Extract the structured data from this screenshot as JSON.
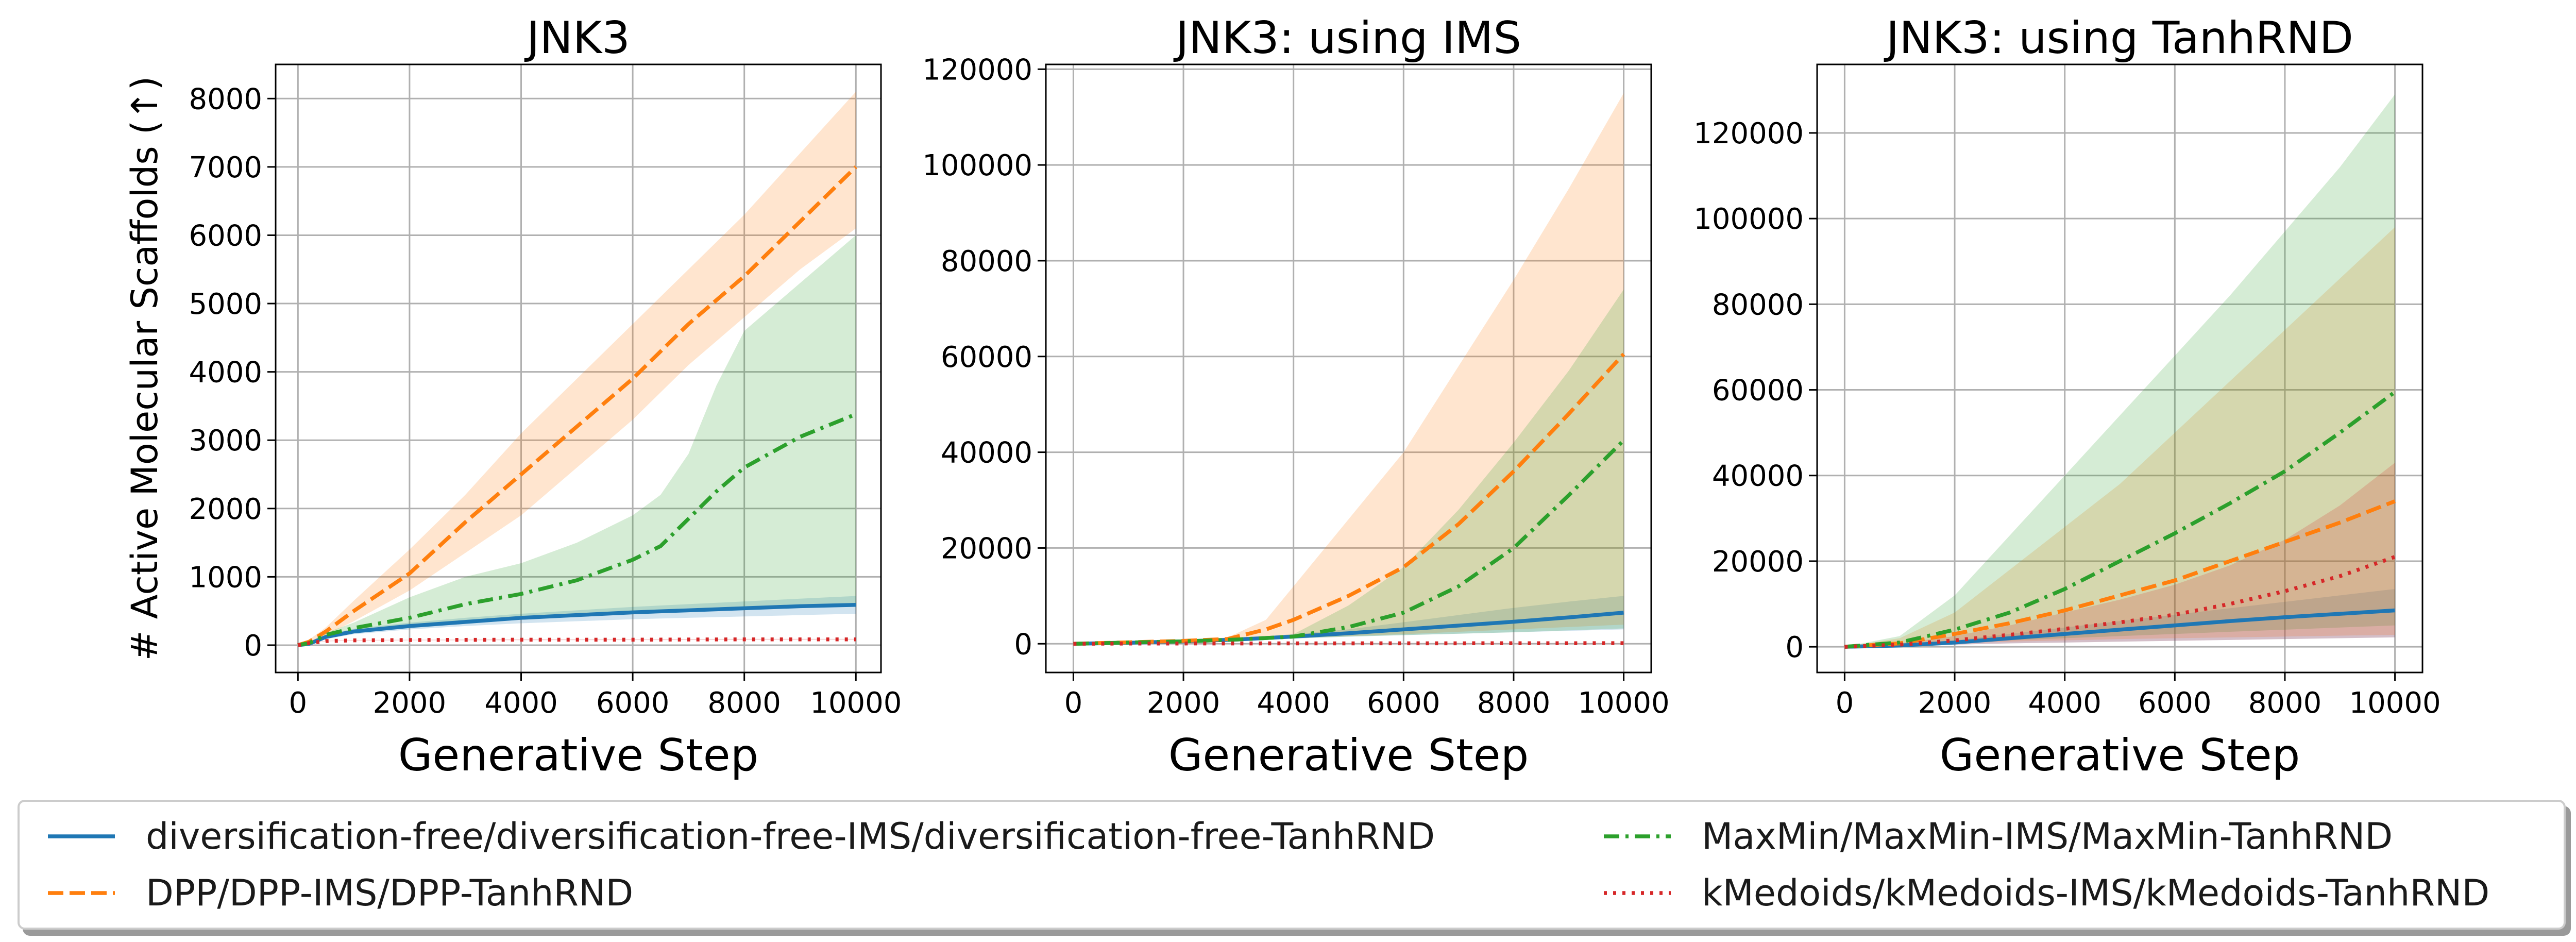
{
  "colors": {
    "diversification_free": "#1f77b4",
    "dpp": "#ff7f0e",
    "maxmin": "#2ca02c",
    "kmedoids": "#d62728",
    "grid": "#b0b0b0",
    "axes": "#000000"
  },
  "chart_data": [
    {
      "type": "line",
      "title": "JNK3",
      "xlabel": "Generative Step",
      "ylabel": "# Active Molecular Scaffolds (↑)",
      "xlim": [
        -400,
        10450
      ],
      "ylim": [
        -400,
        8500
      ],
      "xticks": [
        0,
        2000,
        4000,
        6000,
        8000,
        10000
      ],
      "yticks": [
        0,
        1000,
        2000,
        3000,
        4000,
        5000,
        6000,
        7000,
        8000
      ],
      "xtick_labels": [
        "0",
        "2000",
        "4000",
        "6000",
        "8000",
        "10000"
      ],
      "ytick_labels": [
        "0",
        "1000",
        "2000",
        "3000",
        "4000",
        "5000",
        "6000",
        "7000",
        "8000"
      ],
      "grid": true,
      "series": [
        {
          "key": "diversification_free",
          "style": "solid",
          "x": [
            0,
            200,
            500,
            1000,
            2000,
            3000,
            4000,
            5000,
            6000,
            7000,
            8000,
            9000,
            10000
          ],
          "y": [
            0,
            20,
            120,
            200,
            280,
            340,
            400,
            440,
            480,
            510,
            540,
            570,
            590
          ],
          "lo": [
            0,
            10,
            90,
            160,
            230,
            280,
            320,
            350,
            380,
            400,
            420,
            440,
            460
          ],
          "hi": [
            0,
            30,
            150,
            240,
            330,
            400,
            460,
            510,
            560,
            600,
            640,
            680,
            720
          ]
        },
        {
          "key": "dpp",
          "style": "dashed",
          "x": [
            0,
            200,
            500,
            1000,
            2000,
            3000,
            4000,
            5000,
            6000,
            7000,
            8000,
            9000,
            10000
          ],
          "y": [
            0,
            50,
            200,
            500,
            1050,
            1800,
            2500,
            3200,
            3900,
            4700,
            5400,
            6200,
            7000
          ],
          "lo": [
            0,
            30,
            150,
            350,
            800,
            1350,
            1900,
            2600,
            3300,
            4100,
            4800,
            5500,
            6100
          ],
          "hi": [
            0,
            80,
            260,
            650,
            1400,
            2200,
            3100,
            3900,
            4700,
            5500,
            6300,
            7200,
            8100
          ]
        },
        {
          "key": "maxmin",
          "style": "dashdot",
          "x": [
            0,
            200,
            500,
            1000,
            2000,
            3000,
            4000,
            5000,
            6000,
            6500,
            7000,
            7500,
            8000,
            9000,
            10000
          ],
          "y": [
            0,
            30,
            150,
            250,
            400,
            600,
            750,
            950,
            1250,
            1450,
            1850,
            2250,
            2600,
            3050,
            3380
          ],
          "lo": [
            0,
            20,
            120,
            200,
            280,
            350,
            400,
            450,
            500,
            520,
            540,
            550,
            560,
            580,
            600
          ],
          "hi": [
            0,
            40,
            180,
            330,
            700,
            1000,
            1200,
            1500,
            1900,
            2200,
            2800,
            3800,
            4600,
            5300,
            6000
          ]
        },
        {
          "key": "kmedoids",
          "style": "dotted",
          "x": [
            0,
            200,
            500,
            1000,
            2000,
            4000,
            6000,
            8000,
            10000
          ],
          "y": [
            0,
            30,
            60,
            70,
            75,
            80,
            80,
            85,
            85
          ],
          "lo": [
            0,
            25,
            55,
            65,
            70,
            72,
            74,
            76,
            78
          ],
          "hi": [
            0,
            35,
            65,
            75,
            80,
            88,
            88,
            92,
            92
          ]
        }
      ]
    },
    {
      "type": "line",
      "title": "JNK3: using IMS",
      "xlabel": "Generative Step",
      "ylabel": "",
      "xlim": [
        -500,
        10500
      ],
      "ylim": [
        -6000,
        121000
      ],
      "xticks": [
        0,
        2000,
        4000,
        6000,
        8000,
        10000
      ],
      "yticks": [
        0,
        20000,
        40000,
        60000,
        80000,
        100000,
        120000
      ],
      "xtick_labels": [
        "0",
        "2000",
        "4000",
        "6000",
        "8000",
        "10000"
      ],
      "ytick_labels": [
        "0",
        "20000",
        "40000",
        "60000",
        "80000",
        "100000",
        "120000"
      ],
      "grid": true,
      "series": [
        {
          "key": "diversification_free",
          "style": "solid",
          "x": [
            0,
            1000,
            2000,
            3000,
            4000,
            5000,
            6000,
            7000,
            8000,
            9000,
            10000
          ],
          "y": [
            0,
            200,
            500,
            900,
            1500,
            2200,
            3000,
            3800,
            4600,
            5500,
            6500
          ],
          "lo": [
            0,
            150,
            400,
            700,
            1100,
            1500,
            1800,
            2100,
            2400,
            2700,
            3000
          ],
          "hi": [
            0,
            250,
            600,
            1100,
            2000,
            3000,
            4500,
            6000,
            7500,
            8800,
            10000
          ]
        },
        {
          "key": "dpp",
          "style": "dashed",
          "x": [
            0,
            1000,
            2000,
            2800,
            3500,
            4000,
            5000,
            6000,
            7000,
            8000,
            9000,
            10000
          ],
          "y": [
            0,
            300,
            600,
            1000,
            3000,
            5000,
            10000,
            16000,
            25000,
            36000,
            48000,
            60500
          ],
          "lo": [
            0,
            200,
            400,
            700,
            1000,
            1200,
            1600,
            2000,
            2500,
            3000,
            3500,
            4000
          ],
          "hi": [
            0,
            400,
            800,
            1300,
            5000,
            12000,
            26000,
            40000,
            58000,
            76000,
            95000,
            115000
          ]
        },
        {
          "key": "maxmin",
          "style": "dashdot",
          "x": [
            0,
            1000,
            2000,
            3000,
            4000,
            5000,
            6000,
            7000,
            8000,
            9000,
            10000
          ],
          "y": [
            0,
            250,
            500,
            900,
            1500,
            3500,
            6500,
            12000,
            20000,
            31000,
            42500
          ],
          "lo": [
            0,
            200,
            400,
            700,
            1100,
            1500,
            1800,
            2100,
            2400,
            2800,
            3200
          ],
          "hi": [
            0,
            300,
            600,
            1100,
            2000,
            8000,
            16000,
            28000,
            42000,
            57000,
            74000
          ]
        },
        {
          "key": "kmedoids",
          "style": "dotted",
          "x": [
            0,
            1000,
            4000,
            7000,
            10000
          ],
          "y": [
            0,
            50,
            80,
            100,
            120
          ],
          "lo": [
            0,
            40,
            60,
            80,
            100
          ],
          "hi": [
            0,
            60,
            100,
            120,
            140
          ]
        }
      ]
    },
    {
      "type": "line",
      "title": "JNK3: using TanhRND",
      "xlabel": "Generative Step",
      "ylabel": "",
      "xlim": [
        -500,
        10500
      ],
      "ylim": [
        -6000,
        136000
      ],
      "xticks": [
        0,
        2000,
        4000,
        6000,
        8000,
        10000
      ],
      "yticks": [
        0,
        20000,
        40000,
        60000,
        80000,
        100000,
        120000
      ],
      "xtick_labels": [
        "0",
        "2000",
        "4000",
        "6000",
        "8000",
        "10000"
      ],
      "ytick_labels": [
        "0",
        "20000",
        "40000",
        "60000",
        "80000",
        "100000",
        "120000"
      ],
      "grid": true,
      "series": [
        {
          "key": "diversification_free",
          "style": "solid",
          "x": [
            0,
            1000,
            2000,
            3000,
            4000,
            5000,
            6000,
            7000,
            8000,
            9000,
            10000
          ],
          "y": [
            0,
            300,
            1000,
            2000,
            3000,
            4000,
            5000,
            6000,
            6900,
            7700,
            8500
          ],
          "lo": [
            0,
            200,
            500,
            800,
            1000,
            1200,
            1400,
            1600,
            1800,
            2000,
            2200
          ],
          "hi": [
            0,
            400,
            1500,
            3000,
            4500,
            6000,
            7500,
            9000,
            10500,
            12000,
            13500
          ]
        },
        {
          "key": "dpp",
          "style": "dashed",
          "x": [
            0,
            1000,
            2000,
            3000,
            4000,
            5000,
            6000,
            7000,
            8000,
            9000,
            10000
          ],
          "y": [
            0,
            800,
            3000,
            5500,
            8500,
            12000,
            15500,
            20000,
            24500,
            29000,
            34000
          ],
          "lo": [
            0,
            300,
            800,
            1200,
            1500,
            1800,
            2000,
            2200,
            2400,
            2600,
            2800
          ],
          "hi": [
            0,
            2000,
            8000,
            18000,
            28000,
            38000,
            50000,
            62000,
            74000,
            86000,
            98000
          ]
        },
        {
          "key": "maxmin",
          "style": "dashdot",
          "x": [
            0,
            1000,
            2000,
            3000,
            4000,
            5000,
            6000,
            7000,
            8000,
            9000,
            10000
          ],
          "y": [
            0,
            1000,
            4000,
            8000,
            13500,
            20000,
            26500,
            33500,
            41000,
            50000,
            59500
          ],
          "lo": [
            0,
            400,
            1000,
            1500,
            2000,
            2500,
            3000,
            3500,
            4000,
            4500,
            5000
          ],
          "hi": [
            0,
            2500,
            12000,
            26000,
            40000,
            54000,
            68000,
            82000,
            97000,
            112000,
            129000
          ]
        },
        {
          "key": "kmedoids",
          "style": "dotted",
          "x": [
            0,
            1000,
            2000,
            3000,
            4000,
            5000,
            6000,
            7000,
            8000,
            9000,
            10000
          ],
          "y": [
            0,
            500,
            1500,
            2800,
            4200,
            5700,
            7500,
            10000,
            13000,
            16500,
            21000
          ],
          "lo": [
            0,
            200,
            500,
            800,
            1000,
            1200,
            1400,
            1600,
            1800,
            2000,
            2200
          ],
          "hi": [
            0,
            800,
            2500,
            5000,
            8000,
            11000,
            14500,
            19000,
            25000,
            33000,
            43000
          ]
        }
      ]
    }
  ],
  "legend": {
    "placement": "bottom",
    "items": [
      {
        "key": "diversification_free",
        "style": "solid",
        "label": "diversification-free/diversification-free-IMS/diversification-free-TanhRND"
      },
      {
        "key": "dpp",
        "style": "dashed",
        "label": "DPP/DPP-IMS/DPP-TanhRND"
      },
      {
        "key": "maxmin",
        "style": "dashdot",
        "label": "MaxMin/MaxMin-IMS/MaxMin-TanhRND"
      },
      {
        "key": "kmedoids",
        "style": "dotted",
        "label": "kMedoids/kMedoids-IMS/kMedoids-TanhRND"
      }
    ]
  }
}
